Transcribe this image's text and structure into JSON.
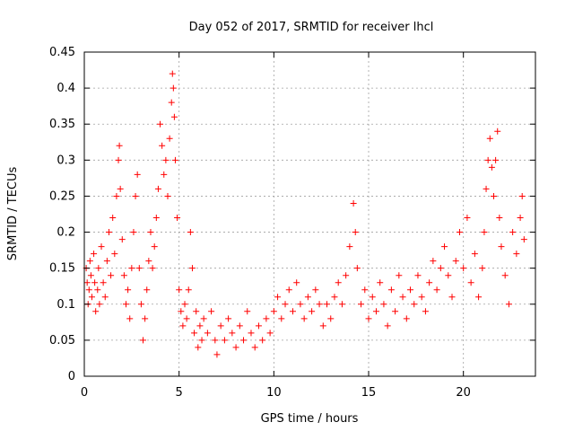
{
  "chart_data": {
    "type": "scatter",
    "title": "Day 052 of 2017, SRMTID for receiver lhcl",
    "xlabel": "GPS time / hours",
    "ylabel": "SRMTID / TECUs",
    "xlim": [
      0,
      23.8
    ],
    "ylim": [
      0,
      0.45
    ],
    "x_ticks": [
      0,
      5,
      10,
      15,
      20
    ],
    "x_tick_labels": [
      "0",
      "5",
      "10",
      "15",
      "20"
    ],
    "y_ticks": [
      0,
      0.05,
      0.1,
      0.15,
      0.2,
      0.25,
      0.3,
      0.35,
      0.4,
      0.45
    ],
    "y_tick_labels": [
      "0",
      "0.05",
      "0.1",
      "0.15",
      "0.2",
      "0.25",
      "0.3",
      "0.35",
      "0.4",
      "0.45"
    ],
    "grid": true,
    "marker": "plus",
    "colors": {
      "points": "#ff0000"
    },
    "series": [
      {
        "values": [
          [
            0.1,
            0.15
          ],
          [
            0.15,
            0.13
          ],
          [
            0.2,
            0.1
          ],
          [
            0.25,
            0.12
          ],
          [
            0.3,
            0.16
          ],
          [
            0.35,
            0.14
          ],
          [
            0.4,
            0.11
          ],
          [
            0.5,
            0.17
          ],
          [
            0.55,
            0.13
          ],
          [
            0.6,
            0.09
          ],
          [
            0.7,
            0.12
          ],
          [
            0.75,
            0.15
          ],
          [
            0.8,
            0.1
          ],
          [
            0.9,
            0.18
          ],
          [
            1.0,
            0.13
          ],
          [
            1.1,
            0.11
          ],
          [
            1.2,
            0.16
          ],
          [
            1.3,
            0.2
          ],
          [
            1.4,
            0.14
          ],
          [
            1.5,
            0.22
          ],
          [
            1.6,
            0.17
          ],
          [
            1.7,
            0.25
          ],
          [
            1.8,
            0.3
          ],
          [
            1.85,
            0.32
          ],
          [
            1.9,
            0.26
          ],
          [
            2.0,
            0.19
          ],
          [
            2.1,
            0.14
          ],
          [
            2.2,
            0.1
          ],
          [
            2.3,
            0.12
          ],
          [
            2.4,
            0.08
          ],
          [
            2.5,
            0.15
          ],
          [
            2.6,
            0.2
          ],
          [
            2.7,
            0.25
          ],
          [
            2.8,
            0.28
          ],
          [
            2.9,
            0.15
          ],
          [
            3.0,
            0.1
          ],
          [
            3.1,
            0.05
          ],
          [
            3.2,
            0.08
          ],
          [
            3.3,
            0.12
          ],
          [
            3.4,
            0.16
          ],
          [
            3.5,
            0.2
          ],
          [
            3.6,
            0.15
          ],
          [
            3.7,
            0.18
          ],
          [
            3.8,
            0.22
          ],
          [
            3.9,
            0.26
          ],
          [
            4.0,
            0.35
          ],
          [
            4.1,
            0.32
          ],
          [
            4.2,
            0.28
          ],
          [
            4.3,
            0.3
          ],
          [
            4.4,
            0.25
          ],
          [
            4.5,
            0.33
          ],
          [
            4.6,
            0.38
          ],
          [
            4.65,
            0.42
          ],
          [
            4.7,
            0.4
          ],
          [
            4.75,
            0.36
          ],
          [
            4.8,
            0.3
          ],
          [
            4.9,
            0.22
          ],
          [
            5.0,
            0.12
          ],
          [
            5.1,
            0.09
          ],
          [
            5.2,
            0.07
          ],
          [
            5.3,
            0.1
          ],
          [
            5.4,
            0.08
          ],
          [
            5.5,
            0.12
          ],
          [
            5.6,
            0.2
          ],
          [
            5.7,
            0.15
          ],
          [
            5.8,
            0.06
          ],
          [
            5.9,
            0.09
          ],
          [
            6.0,
            0.04
          ],
          [
            6.1,
            0.07
          ],
          [
            6.2,
            0.05
          ],
          [
            6.3,
            0.08
          ],
          [
            6.5,
            0.06
          ],
          [
            6.7,
            0.09
          ],
          [
            6.9,
            0.05
          ],
          [
            7.0,
            0.03
          ],
          [
            7.2,
            0.07
          ],
          [
            7.4,
            0.05
          ],
          [
            7.6,
            0.08
          ],
          [
            7.8,
            0.06
          ],
          [
            8.0,
            0.04
          ],
          [
            8.2,
            0.07
          ],
          [
            8.4,
            0.05
          ],
          [
            8.6,
            0.09
          ],
          [
            8.8,
            0.06
          ],
          [
            9.0,
            0.04
          ],
          [
            9.2,
            0.07
          ],
          [
            9.4,
            0.05
          ],
          [
            9.6,
            0.08
          ],
          [
            9.8,
            0.06
          ],
          [
            10.0,
            0.09
          ],
          [
            10.2,
            0.11
          ],
          [
            10.4,
            0.08
          ],
          [
            10.6,
            0.1
          ],
          [
            10.8,
            0.12
          ],
          [
            11.0,
            0.09
          ],
          [
            11.2,
            0.13
          ],
          [
            11.4,
            0.1
          ],
          [
            11.6,
            0.08
          ],
          [
            11.8,
            0.11
          ],
          [
            12.0,
            0.09
          ],
          [
            12.2,
            0.12
          ],
          [
            12.4,
            0.1
          ],
          [
            12.6,
            0.07
          ],
          [
            12.8,
            0.1
          ],
          [
            13.0,
            0.08
          ],
          [
            13.2,
            0.11
          ],
          [
            13.4,
            0.13
          ],
          [
            13.6,
            0.1
          ],
          [
            13.8,
            0.14
          ],
          [
            14.0,
            0.18
          ],
          [
            14.2,
            0.24
          ],
          [
            14.3,
            0.2
          ],
          [
            14.4,
            0.15
          ],
          [
            14.6,
            0.1
          ],
          [
            14.8,
            0.12
          ],
          [
            15.0,
            0.08
          ],
          [
            15.2,
            0.11
          ],
          [
            15.4,
            0.09
          ],
          [
            15.6,
            0.13
          ],
          [
            15.8,
            0.1
          ],
          [
            16.0,
            0.07
          ],
          [
            16.2,
            0.12
          ],
          [
            16.4,
            0.09
          ],
          [
            16.6,
            0.14
          ],
          [
            16.8,
            0.11
          ],
          [
            17.0,
            0.08
          ],
          [
            17.2,
            0.12
          ],
          [
            17.4,
            0.1
          ],
          [
            17.6,
            0.14
          ],
          [
            17.8,
            0.11
          ],
          [
            18.0,
            0.09
          ],
          [
            18.2,
            0.13
          ],
          [
            18.4,
            0.16
          ],
          [
            18.6,
            0.12
          ],
          [
            18.8,
            0.15
          ],
          [
            19.0,
            0.18
          ],
          [
            19.2,
            0.14
          ],
          [
            19.4,
            0.11
          ],
          [
            19.6,
            0.16
          ],
          [
            19.8,
            0.2
          ],
          [
            20.0,
            0.15
          ],
          [
            20.2,
            0.22
          ],
          [
            20.4,
            0.13
          ],
          [
            20.6,
            0.17
          ],
          [
            20.8,
            0.11
          ],
          [
            21.0,
            0.15
          ],
          [
            21.1,
            0.2
          ],
          [
            21.2,
            0.26
          ],
          [
            21.3,
            0.3
          ],
          [
            21.4,
            0.33
          ],
          [
            21.5,
            0.29
          ],
          [
            21.6,
            0.25
          ],
          [
            21.7,
            0.3
          ],
          [
            21.8,
            0.34
          ],
          [
            21.9,
            0.22
          ],
          [
            22.0,
            0.18
          ],
          [
            22.2,
            0.14
          ],
          [
            22.4,
            0.1
          ],
          [
            22.6,
            0.2
          ],
          [
            22.8,
            0.17
          ],
          [
            23.0,
            0.22
          ],
          [
            23.1,
            0.25
          ],
          [
            23.2,
            0.19
          ]
        ]
      }
    ]
  }
}
